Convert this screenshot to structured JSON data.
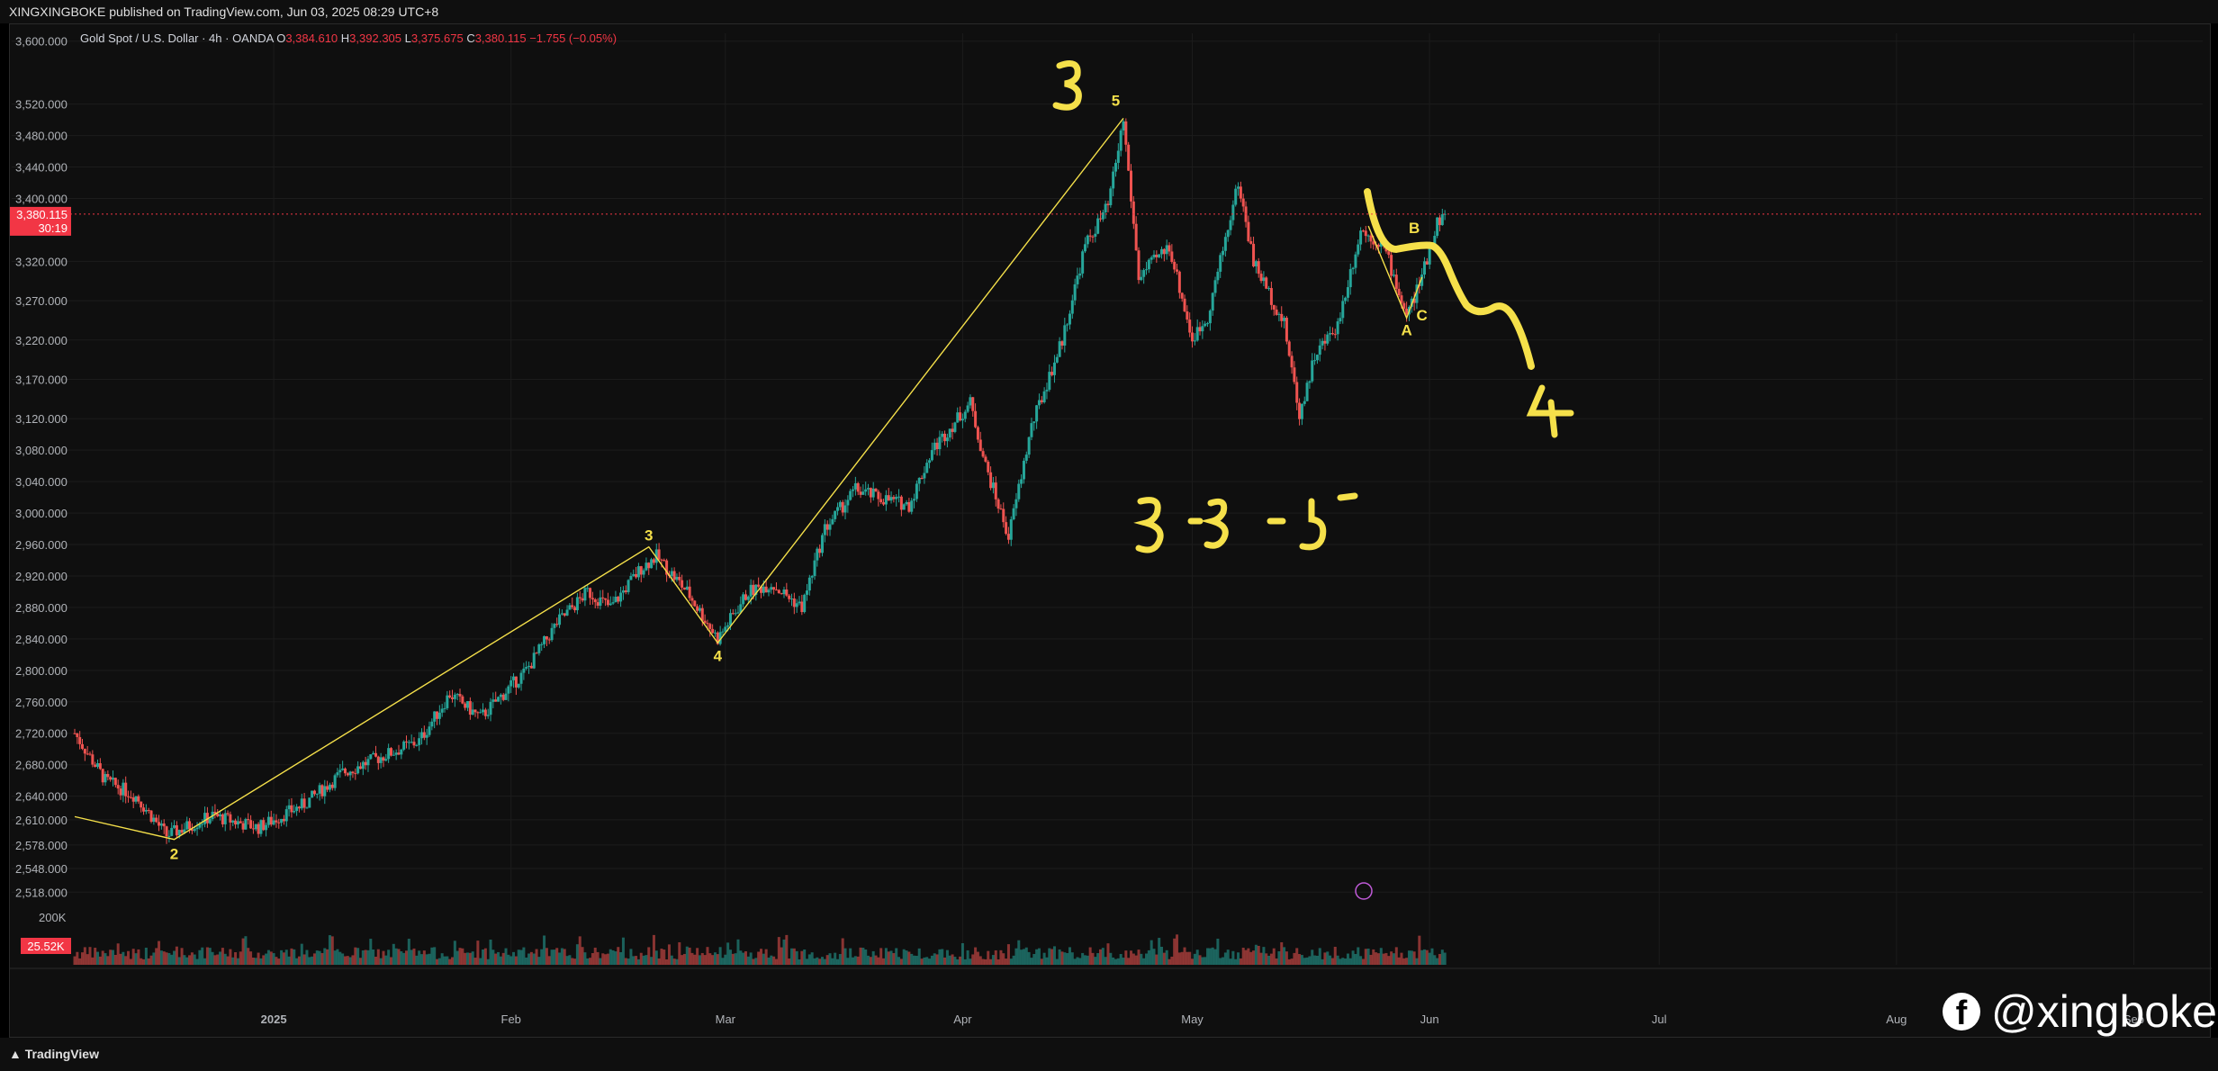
{
  "header": {
    "publisher": "XINGXINGBOKE published on TradingView.com, Jun 03, 2025 08:29 UTC+8"
  },
  "legend": {
    "symbol": "Gold Spot / U.S. Dollar · 4h · OANDA",
    "o_label": "O",
    "o_value": "3,384.610",
    "h_label": "H",
    "h_value": "3,392.305",
    "l_label": "L",
    "l_value": "3,375.675",
    "c_label": "C",
    "c_value": "3,380.115",
    "change": "−1.755 (−0.05%)"
  },
  "price_tag": {
    "price": "3,380.115",
    "countdown": "30:19"
  },
  "volume_tag": "25.52K",
  "volume_axis_label": "200K",
  "footer": {
    "logo": "TradingView"
  },
  "watermark": {
    "handle": "@xingboke",
    "icon": "facebook-icon"
  },
  "colors": {
    "up": "#26a69a",
    "down": "#ef5350",
    "wave": "#f5e04a",
    "bg": "#0f0f0f",
    "price": "#f23645"
  },
  "chart_data": {
    "type": "candlestick",
    "title": "",
    "ylim": [
      2500,
      3610
    ],
    "y_ticks": [
      "3,600.000",
      "3,520.000",
      "3,480.000",
      "3,440.000",
      "3,400.000",
      "3,320.000",
      "3,270.000",
      "3,220.000",
      "3,170.000",
      "3,120.000",
      "3,080.000",
      "3,040.000",
      "3,000.000",
      "2,960.000",
      "2,920.000",
      "2,880.000",
      "2,840.000",
      "2,800.000",
      "2,760.000",
      "2,720.000",
      "2,680.000",
      "2,640.000",
      "2,610.000",
      "2,578.000",
      "2,548.000",
      "2,518.000"
    ],
    "x_ticks": [
      "2025",
      "Feb",
      "Mar",
      "Apr",
      "May",
      "Jun",
      "Jul",
      "Aug",
      "Sep"
    ],
    "x_tick_dates": [
      "2025-01-01",
      "2025-02-01",
      "2025-03-01",
      "2025-04-01",
      "2025-05-01",
      "2025-06-01",
      "2025-07-01",
      "2025-08-01",
      "2025-09-01"
    ],
    "x_range": [
      "2024-12-06",
      "2025-09-10"
    ],
    "last_date": "2025-06-03",
    "last_price": 3380.115,
    "price_path": [
      [
        "2024-12-06",
        2720
      ],
      [
        "2024-12-10",
        2660
      ],
      [
        "2024-12-14",
        2640
      ],
      [
        "2024-12-18",
        2590
      ],
      [
        "2024-12-24",
        2615
      ],
      [
        "2024-12-30",
        2600
      ],
      [
        "2025-01-05",
        2630
      ],
      [
        "2025-01-10",
        2670
      ],
      [
        "2025-01-15",
        2690
      ],
      [
        "2025-01-20",
        2710
      ],
      [
        "2025-01-24",
        2770
      ],
      [
        "2025-01-28",
        2740
      ],
      [
        "2025-02-03",
        2800
      ],
      [
        "2025-02-07",
        2860
      ],
      [
        "2025-02-11",
        2900
      ],
      [
        "2025-02-14",
        2880
      ],
      [
        "2025-02-18",
        2930
      ],
      [
        "2025-02-20",
        2945
      ],
      [
        "2025-02-24",
        2900
      ],
      [
        "2025-02-28",
        2840
      ],
      [
        "2025-03-04",
        2900
      ],
      [
        "2025-03-07",
        2910
      ],
      [
        "2025-03-11",
        2880
      ],
      [
        "2025-03-14",
        2980
      ],
      [
        "2025-03-18",
        3030
      ],
      [
        "2025-03-21",
        3020
      ],
      [
        "2025-03-25",
        3010
      ],
      [
        "2025-03-28",
        3080
      ],
      [
        "2025-04-02",
        3140
      ],
      [
        "2025-04-04",
        3060
      ],
      [
        "2025-04-07",
        2970
      ],
      [
        "2025-04-10",
        3110
      ],
      [
        "2025-04-14",
        3220
      ],
      [
        "2025-04-17",
        3340
      ],
      [
        "2025-04-20",
        3390
      ],
      [
        "2025-04-22",
        3500
      ],
      [
        "2025-04-24",
        3300
      ],
      [
        "2025-04-28",
        3340
      ],
      [
        "2025-05-01",
        3220
      ],
      [
        "2025-05-03",
        3250
      ],
      [
        "2025-05-07",
        3420
      ],
      [
        "2025-05-09",
        3320
      ],
      [
        "2025-05-13",
        3240
      ],
      [
        "2025-05-15",
        3125
      ],
      [
        "2025-05-17",
        3200
      ],
      [
        "2025-05-20",
        3240
      ],
      [
        "2025-05-23",
        3360
      ],
      [
        "2025-05-26",
        3340
      ],
      [
        "2025-05-29",
        3250
      ],
      [
        "2025-05-31",
        3300
      ],
      [
        "2025-06-02",
        3370
      ],
      [
        "2025-06-03",
        3380
      ]
    ],
    "wave_lines": [
      [
        [
          "2024-12-06",
          2614
        ],
        [
          "2024-12-19",
          2585
        ],
        [
          "2025-02-19",
          2957
        ],
        [
          "2025-02-28",
          2835
        ],
        [
          "2025-04-22",
          3502
        ]
      ],
      [
        [
          "2025-05-24",
          3365
        ],
        [
          "2025-05-29",
          3248
        ],
        [
          "2025-05-31",
          3300
        ]
      ]
    ],
    "wave_labels": [
      {
        "text": "2",
        "date": "2024-12-19",
        "price": 2560
      },
      {
        "text": "3",
        "date": "2025-02-19",
        "price": 2965
      },
      {
        "text": "4",
        "date": "2025-02-28",
        "price": 2812
      },
      {
        "text": "5",
        "date": "2025-04-21",
        "price": 3518
      },
      {
        "text": "A",
        "date": "2025-05-29",
        "price": 3226
      },
      {
        "text": "B",
        "date": "2025-05-30",
        "price": 3356
      },
      {
        "text": "C",
        "date": "2025-05-31",
        "price": 3245
      }
    ],
    "annotations": [
      "3",
      "4",
      "3 -3 -5"
    ]
  }
}
